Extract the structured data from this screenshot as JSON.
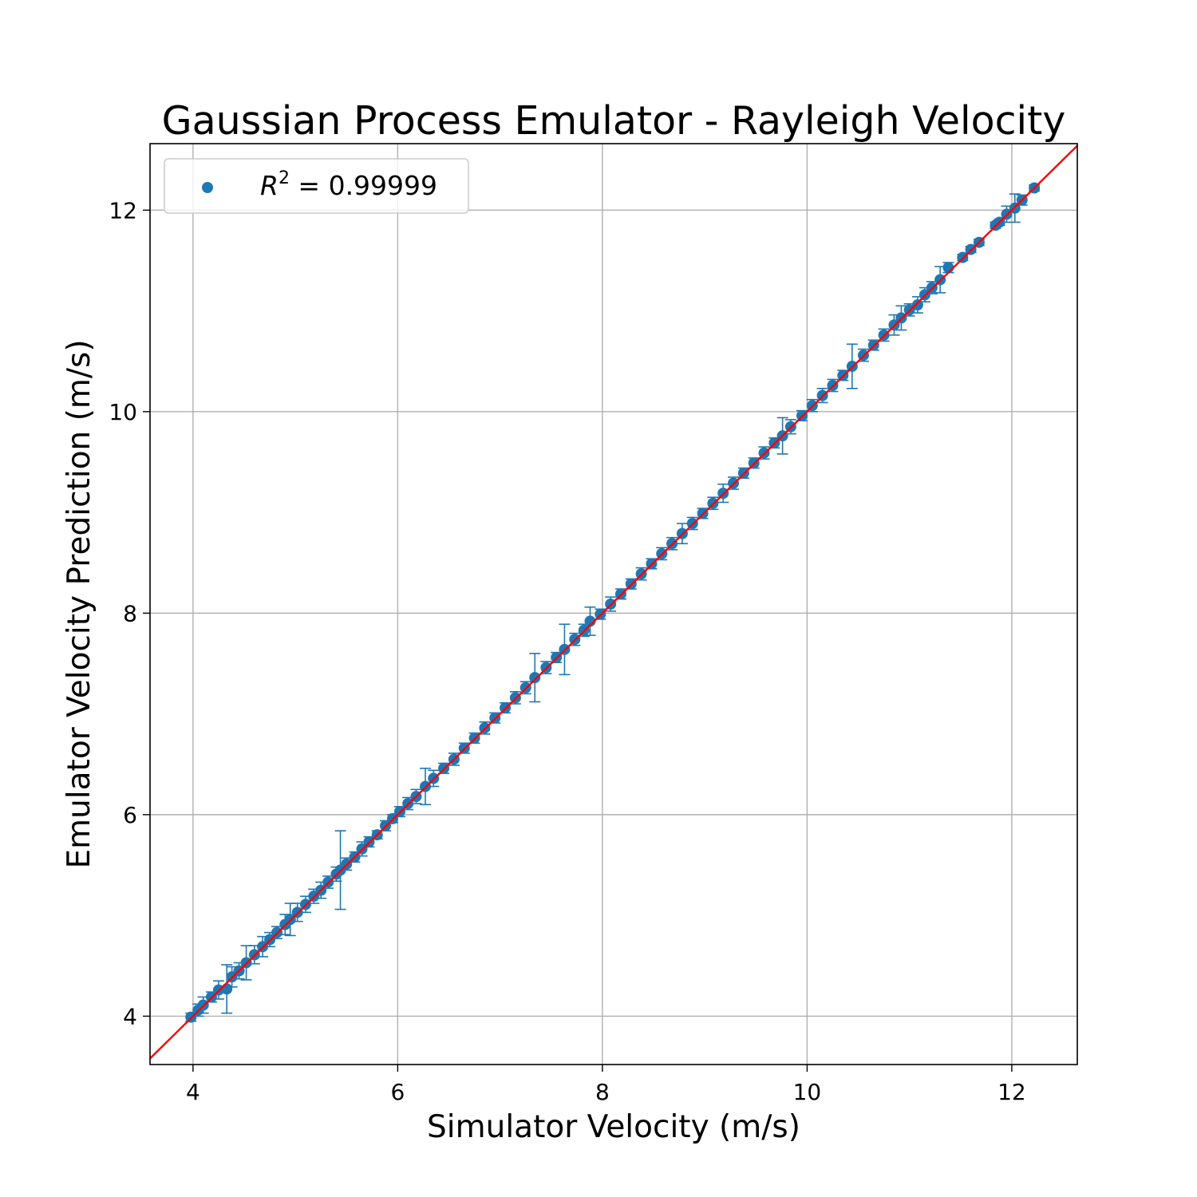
{
  "chart_data": {
    "type": "scatter",
    "title": "Gaussian Process Emulator - Rayleigh Velocity",
    "xlabel": "Simulator Velocity (m/s)",
    "ylabel": "Emulator Velocity Prediction (m/s)",
    "xlim": [
      3.58,
      12.64
    ],
    "ylim": [
      3.52,
      12.66
    ],
    "xticks": [
      "4",
      "6",
      "8",
      "10",
      "12"
    ],
    "yticks": [
      "4",
      "6",
      "8",
      "10",
      "12"
    ],
    "xtick_values": [
      4,
      6,
      8,
      10,
      12
    ],
    "ytick_values": [
      4,
      6,
      8,
      10,
      12
    ],
    "grid": true,
    "legend": {
      "position": "top-left",
      "entries": [
        {
          "label": "R^2 = 0.99999",
          "marker": "circle"
        }
      ]
    },
    "reference_line": {
      "label": "y = x",
      "color": "#ff0000"
    },
    "colors": {
      "points": "#1f77b4",
      "line": "#ff0000",
      "grid": "#b0b0b0"
    },
    "series": [
      {
        "points": [
          [
            3.98,
            3.99,
            0.04
          ],
          [
            4.05,
            4.06,
            0.06
          ],
          [
            4.1,
            4.11,
            0.08
          ],
          [
            4.18,
            4.19,
            0.05
          ],
          [
            4.25,
            4.26,
            0.09
          ],
          [
            4.33,
            4.27,
            0.24
          ],
          [
            4.38,
            4.39,
            0.1
          ],
          [
            4.45,
            4.45,
            0.08
          ],
          [
            4.52,
            4.53,
            0.17
          ],
          [
            4.6,
            4.61,
            0.09
          ],
          [
            4.68,
            4.69,
            0.1
          ],
          [
            4.75,
            4.76,
            0.07
          ],
          [
            4.82,
            4.83,
            0.06
          ],
          [
            4.9,
            4.91,
            0.1
          ],
          [
            4.95,
            4.96,
            0.16
          ],
          [
            5.02,
            5.03,
            0.09
          ],
          [
            5.1,
            5.11,
            0.08
          ],
          [
            5.18,
            5.19,
            0.07
          ],
          [
            5.25,
            5.25,
            0.08
          ],
          [
            5.32,
            5.33,
            0.06
          ],
          [
            5.4,
            5.41,
            0.07
          ],
          [
            5.44,
            5.45,
            0.39
          ],
          [
            5.5,
            5.51,
            0.06
          ],
          [
            5.58,
            5.58,
            0.05
          ],
          [
            5.65,
            5.66,
            0.07
          ],
          [
            5.72,
            5.73,
            0.05
          ],
          [
            5.8,
            5.8,
            0.04
          ],
          [
            5.88,
            5.89,
            0.05
          ],
          [
            5.95,
            5.96,
            0.04
          ],
          [
            6.02,
            6.03,
            0.05
          ],
          [
            6.1,
            6.11,
            0.06
          ],
          [
            6.18,
            6.18,
            0.07
          ],
          [
            6.27,
            6.28,
            0.18
          ],
          [
            6.35,
            6.36,
            0.08
          ],
          [
            6.45,
            6.46,
            0.05
          ],
          [
            6.55,
            6.55,
            0.06
          ],
          [
            6.65,
            6.66,
            0.05
          ],
          [
            6.75,
            6.76,
            0.05
          ],
          [
            6.85,
            6.86,
            0.06
          ],
          [
            6.95,
            6.96,
            0.05
          ],
          [
            7.05,
            7.06,
            0.05
          ],
          [
            7.15,
            7.16,
            0.06
          ],
          [
            7.25,
            7.26,
            0.06
          ],
          [
            7.34,
            7.36,
            0.24
          ],
          [
            7.45,
            7.46,
            0.06
          ],
          [
            7.55,
            7.56,
            0.05
          ],
          [
            7.63,
            7.64,
            0.25
          ],
          [
            7.73,
            7.74,
            0.06
          ],
          [
            7.82,
            7.83,
            0.06
          ],
          [
            7.88,
            7.92,
            0.14
          ],
          [
            7.98,
            7.99,
            0.05
          ],
          [
            8.08,
            8.09,
            0.07
          ],
          [
            8.18,
            8.19,
            0.05
          ],
          [
            8.28,
            8.29,
            0.05
          ],
          [
            8.38,
            8.39,
            0.06
          ],
          [
            8.48,
            8.49,
            0.05
          ],
          [
            8.58,
            8.59,
            0.06
          ],
          [
            8.68,
            8.69,
            0.06
          ],
          [
            8.78,
            8.79,
            0.1
          ],
          [
            8.88,
            8.89,
            0.06
          ],
          [
            8.98,
            8.99,
            0.05
          ],
          [
            9.08,
            9.09,
            0.06
          ],
          [
            9.18,
            9.19,
            0.09
          ],
          [
            9.28,
            9.29,
            0.06
          ],
          [
            9.38,
            9.39,
            0.05
          ],
          [
            9.48,
            9.49,
            0.05
          ],
          [
            9.58,
            9.59,
            0.06
          ],
          [
            9.68,
            9.69,
            0.05
          ],
          [
            9.76,
            9.76,
            0.18
          ],
          [
            9.84,
            9.85,
            0.07
          ],
          [
            9.95,
            9.96,
            0.05
          ],
          [
            10.05,
            10.06,
            0.06
          ],
          [
            10.15,
            10.16,
            0.07
          ],
          [
            10.25,
            10.26,
            0.06
          ],
          [
            10.35,
            10.36,
            0.05
          ],
          [
            10.44,
            10.45,
            0.22
          ],
          [
            10.55,
            10.56,
            0.06
          ],
          [
            10.65,
            10.66,
            0.05
          ],
          [
            10.75,
            10.76,
            0.06
          ],
          [
            10.85,
            10.86,
            0.1
          ],
          [
            10.92,
            10.93,
            0.12
          ],
          [
            11.0,
            11.01,
            0.06
          ],
          [
            11.08,
            11.06,
            0.08
          ],
          [
            11.15,
            11.16,
            0.07
          ],
          [
            11.22,
            11.23,
            0.06
          ],
          [
            11.3,
            11.31,
            0.13
          ],
          [
            11.38,
            11.43,
            0.05
          ],
          [
            11.52,
            11.53,
            0.03
          ],
          [
            11.6,
            11.61,
            0.03
          ],
          [
            11.68,
            11.68,
            0.03
          ],
          [
            11.84,
            11.85,
            0.03
          ],
          [
            11.88,
            11.88,
            0.03
          ],
          [
            11.95,
            11.96,
            0.08
          ],
          [
            12.03,
            12.02,
            0.14
          ],
          [
            12.1,
            12.1,
            0.05
          ],
          [
            12.22,
            12.22,
            0.03
          ]
        ]
      }
    ]
  }
}
